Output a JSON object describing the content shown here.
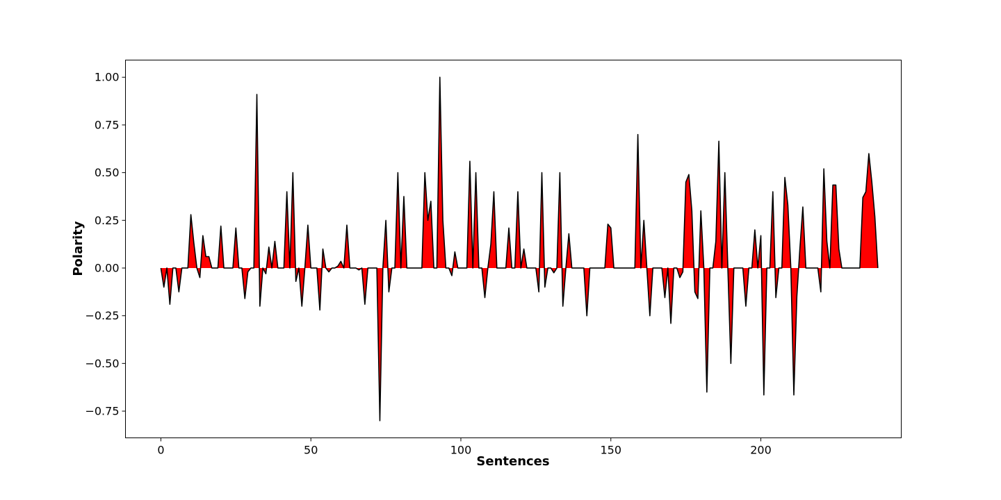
{
  "chart_data": {
    "type": "area",
    "title": "",
    "xlabel": "Sentences",
    "ylabel": "Polarity",
    "xlim": [
      -11.8,
      246.8
    ],
    "ylim": [
      -0.89,
      1.09
    ],
    "xticks": [
      0,
      50,
      100,
      150,
      200
    ],
    "yticks": [
      -0.75,
      -0.5,
      -0.25,
      0.0,
      0.25,
      0.5,
      0.75,
      1.0
    ],
    "ytick_labels": [
      "−0.75",
      "−0.50",
      "−0.25",
      "0.00",
      "0.25",
      "0.50",
      "0.75",
      "1.00"
    ],
    "grid": false,
    "fill_color": "#ff0000",
    "line_color": "#000000",
    "series": [
      {
        "values": [
          0,
          -0.1,
          0,
          -0.19,
          0,
          0,
          -0.125,
          0,
          0,
          0,
          0.28,
          0.13,
          0,
          -0.05,
          0.17,
          0.06,
          0.06,
          0,
          0,
          0,
          0.22,
          0,
          0,
          0,
          0,
          0.21,
          0,
          0,
          -0.16,
          -0.02,
          0,
          0,
          0.91,
          -0.2,
          0,
          -0.03,
          0.11,
          0,
          0.14,
          0,
          0,
          0,
          0.4,
          0,
          0.5,
          -0.07,
          0,
          -0.2,
          0,
          0.225,
          0,
          0,
          0,
          -0.22,
          0.1,
          0,
          -0.02,
          0,
          0,
          0.01,
          0.035,
          0,
          0.225,
          0,
          0,
          0,
          -0.01,
          0,
          -0.19,
          0,
          0,
          0,
          0,
          -0.8,
          0,
          0.25,
          -0.125,
          0,
          0,
          0.5,
          0,
          0.375,
          0,
          0,
          0,
          0,
          0,
          0,
          0.5,
          0.25,
          0.35,
          0,
          0,
          1.0,
          0.25,
          0,
          0,
          -0.04,
          0.085,
          0,
          0,
          0,
          0,
          0.56,
          0,
          0.5,
          0,
          0,
          -0.155,
          0,
          0.125,
          0.4,
          0,
          0,
          0,
          0,
          0.21,
          0,
          0,
          0.4,
          0,
          0.1,
          0,
          0,
          0,
          0,
          -0.125,
          0.5,
          -0.1,
          0,
          0,
          -0.025,
          0,
          0.5,
          -0.2,
          0,
          0.18,
          0,
          0,
          0,
          0,
          0,
          -0.25,
          0,
          0,
          0,
          0,
          0,
          0,
          0.23,
          0.21,
          0,
          0,
          0,
          0,
          0,
          0,
          0,
          0,
          0.7,
          0,
          0.25,
          0,
          -0.25,
          0,
          0,
          0,
          0,
          -0.155,
          0,
          -0.29,
          0,
          0,
          -0.05,
          -0.02,
          0.45,
          0.49,
          0.3,
          -0.125,
          -0.16,
          0.3,
          0,
          -0.65,
          0,
          0,
          0.14,
          0.665,
          0,
          0.5,
          0,
          -0.5,
          0,
          0,
          0,
          0,
          -0.2,
          0,
          0,
          0.2,
          0,
          0.17,
          -0.665,
          0,
          0,
          0.4,
          -0.155,
          0,
          0,
          0.475,
          0.33,
          0,
          -0.665,
          -0.15,
          0.1,
          0.32,
          0,
          0,
          0,
          0,
          0,
          -0.125,
          0.52,
          0.14,
          0,
          0.435,
          0.435,
          0.1,
          0,
          0,
          0,
          0,
          0,
          0,
          0,
          0.37,
          0.4,
          0.6,
          0.45,
          0.27,
          0
        ]
      }
    ]
  }
}
